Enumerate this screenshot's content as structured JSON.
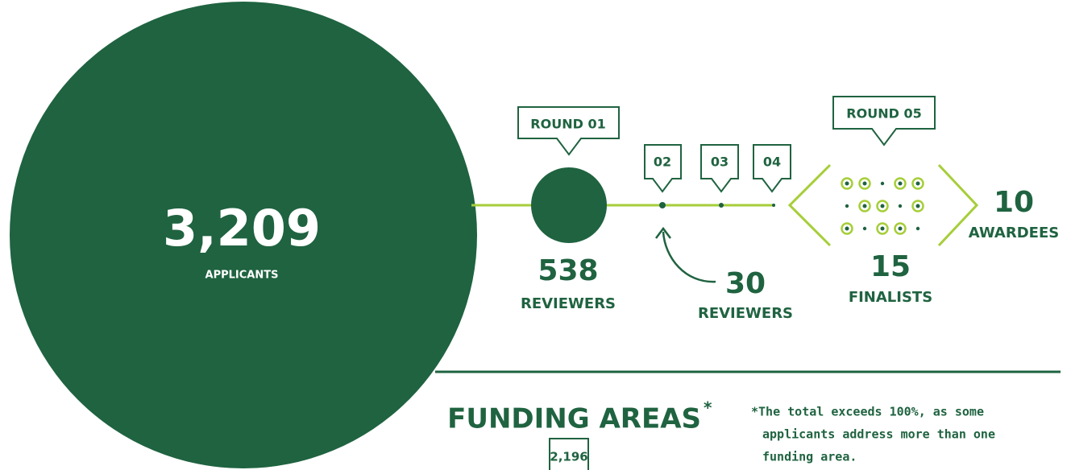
{
  "applicants": {
    "value": "3,209",
    "label": "APPLICANTS"
  },
  "rounds": [
    {
      "label": "ROUND 01",
      "count": "538",
      "unit": "REVIEWERS"
    },
    {
      "label": "02",
      "count": "30",
      "unit": "REVIEWERS"
    },
    {
      "label": "03"
    },
    {
      "label": "04"
    },
    {
      "label": "ROUND 05",
      "count": "15",
      "unit": "FINALISTS"
    }
  ],
  "awardees": {
    "value": "10",
    "label": "AWARDEES"
  },
  "funding": {
    "title": "FUNDING AREAS",
    "marker": "*",
    "first_value": "2,196",
    "note": [
      "*The total exceeds 100%, as some",
      "applicants address more than one",
      "funding area."
    ]
  }
}
